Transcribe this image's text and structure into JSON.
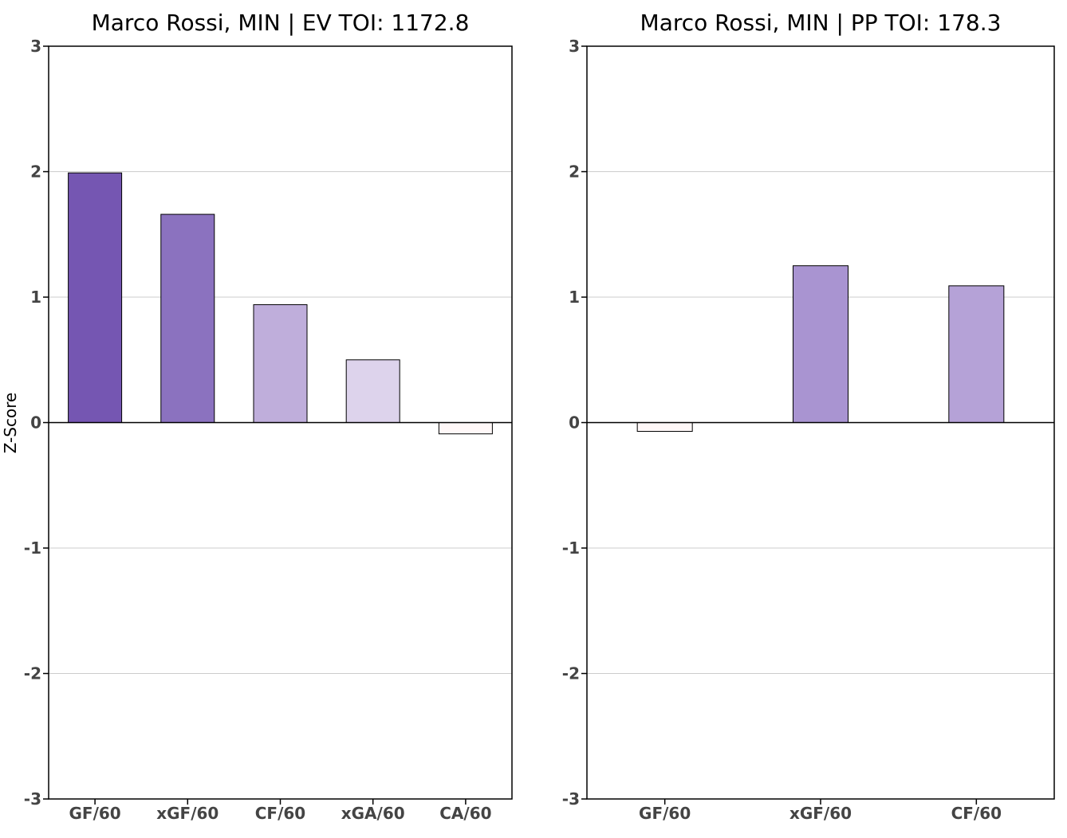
{
  "ylabel": "Z-Score",
  "chart_data": [
    {
      "type": "bar",
      "title": "Marco Rossi, MIN  |  EV TOI: 1172.8",
      "xlabel": "",
      "ylabel": "Z-Score",
      "ylim": [
        -3,
        3
      ],
      "yticks": [
        -3,
        -2,
        -1,
        0,
        1,
        2,
        3
      ],
      "grid": "horizontal",
      "categories": [
        "GF/60",
        "xGF/60",
        "CF/60",
        "xGA/60",
        "CA/60"
      ],
      "values": [
        1.99,
        1.66,
        0.94,
        0.5,
        -0.09
      ],
      "colors": [
        "#7556b2",
        "#8b72bf",
        "#bfaedb",
        "#ddd3ec",
        "#fff8f8"
      ]
    },
    {
      "type": "bar",
      "title": "Marco Rossi, MIN  |  PP TOI: 178.3",
      "xlabel": "",
      "ylabel": "",
      "ylim": [
        -3,
        3
      ],
      "yticks": [
        -3,
        -2,
        -1,
        0,
        1,
        2,
        3
      ],
      "grid": "horizontal",
      "categories": [
        "GF/60",
        "xGF/60",
        "CF/60"
      ],
      "values": [
        -0.07,
        1.25,
        1.09
      ],
      "colors": [
        "#fff8f8",
        "#a994d1",
        "#b5a2d7"
      ]
    }
  ]
}
